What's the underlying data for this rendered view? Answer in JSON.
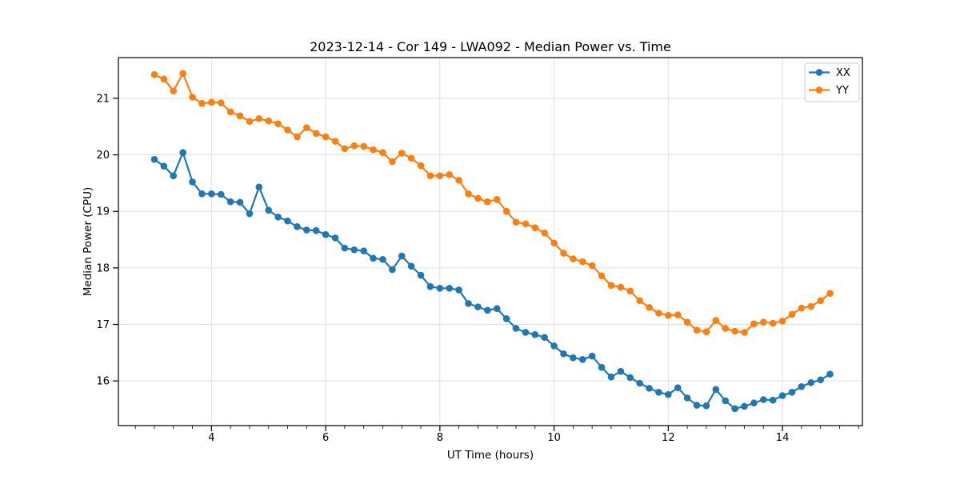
{
  "figure": {
    "title": "2023-12-14 - Cor 149 - LWA092 - Median Power vs. Time",
    "xlabel": "UT Time (hours)",
    "ylabel": "Median Power (CPU)"
  },
  "legend": {
    "position": "upper right",
    "items": [
      {
        "label": "XX",
        "color": "#1f77b4"
      },
      {
        "label": "YY",
        "color": "#ff7f0e"
      }
    ]
  },
  "style": {
    "series_blue": "#1f77b4",
    "series_orange": "#ff7f0e",
    "grid_color": "#e0e0e0",
    "spine_color": "#000000",
    "legend_border": "#cccccc",
    "background": "#ffffff"
  },
  "chart_data": {
    "type": "line",
    "title": "2023-12-14 - Cor 149 - LWA092 - Median Power vs. Time",
    "xlabel": "UT Time (hours)",
    "ylabel": "Median Power (CPU)",
    "xlim": [
      2.37,
      15.4
    ],
    "ylim": [
      15.21,
      21.72
    ],
    "xticks": [
      4,
      6,
      8,
      10,
      12,
      14
    ],
    "yticks": [
      16,
      17,
      18,
      19,
      20,
      21
    ],
    "x_minor_step": 0.33333,
    "grid": true,
    "legend_position": "upper right",
    "marker": "o",
    "x": [
      3.0,
      3.167,
      3.333,
      3.5,
      3.667,
      3.833,
      4.0,
      4.167,
      4.333,
      4.5,
      4.667,
      4.833,
      5.0,
      5.167,
      5.333,
      5.5,
      5.667,
      5.833,
      6.0,
      6.167,
      6.333,
      6.5,
      6.667,
      6.833,
      7.0,
      7.167,
      7.333,
      7.5,
      7.667,
      7.833,
      8.0,
      8.167,
      8.333,
      8.5,
      8.667,
      8.833,
      9.0,
      9.167,
      9.333,
      9.5,
      9.667,
      9.833,
      10.0,
      10.167,
      10.333,
      10.5,
      10.667,
      10.833,
      11.0,
      11.167,
      11.333,
      11.5,
      11.667,
      11.833,
      12.0,
      12.167,
      12.333,
      12.5,
      12.667,
      12.833,
      13.0,
      13.167,
      13.333,
      13.5,
      13.667,
      13.833,
      14.0,
      14.167,
      14.333,
      14.5,
      14.667,
      14.833
    ],
    "series": [
      {
        "name": "XX",
        "color": "#1f77b4",
        "values": [
          19.92,
          19.8,
          19.63,
          20.04,
          19.52,
          19.31,
          19.31,
          19.3,
          19.17,
          19.16,
          18.96,
          19.43,
          19.02,
          18.9,
          18.83,
          18.73,
          18.67,
          18.66,
          18.59,
          18.53,
          18.35,
          18.32,
          18.3,
          18.17,
          18.15,
          17.97,
          18.21,
          18.03,
          17.87,
          17.67,
          17.64,
          17.64,
          17.61,
          17.37,
          17.31,
          17.25,
          17.28,
          17.1,
          16.93,
          16.86,
          16.82,
          16.77,
          16.62,
          16.48,
          16.41,
          16.38,
          16.44,
          16.24,
          16.07,
          16.17,
          16.06,
          15.96,
          15.87,
          15.8,
          15.76,
          15.88,
          15.7,
          15.57,
          15.56,
          15.85,
          15.65,
          15.51,
          15.55,
          15.61,
          15.67,
          15.66,
          15.74,
          15.8,
          15.9,
          15.97,
          16.02,
          16.12
        ]
      },
      {
        "name": "YY",
        "color": "#ff7f0e",
        "values": [
          21.42,
          21.34,
          21.13,
          21.44,
          21.02,
          20.91,
          20.93,
          20.92,
          20.76,
          20.69,
          20.59,
          20.64,
          20.6,
          20.55,
          20.44,
          20.32,
          20.48,
          20.38,
          20.32,
          20.24,
          20.11,
          20.16,
          20.15,
          20.09,
          20.04,
          19.88,
          20.03,
          19.94,
          19.81,
          19.63,
          19.63,
          19.65,
          19.55,
          19.31,
          19.23,
          19.17,
          19.21,
          19.0,
          18.81,
          18.78,
          18.71,
          18.62,
          18.44,
          18.26,
          18.16,
          18.11,
          18.04,
          17.86,
          17.69,
          17.66,
          17.59,
          17.42,
          17.3,
          17.2,
          17.16,
          17.17,
          17.04,
          16.9,
          16.87,
          17.07,
          16.93,
          16.88,
          16.86,
          17.01,
          17.04,
          17.02,
          17.06,
          17.18,
          17.29,
          17.32,
          17.42,
          17.55
        ]
      }
    ]
  }
}
